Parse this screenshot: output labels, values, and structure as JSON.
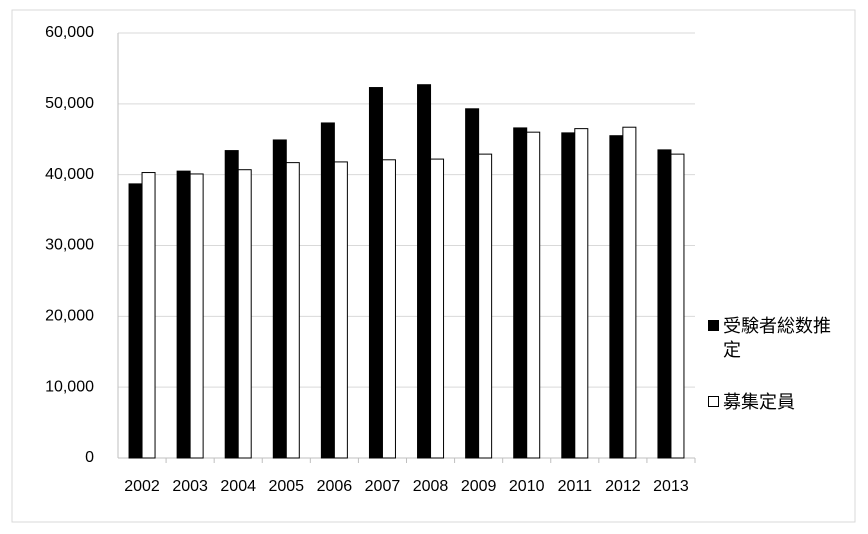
{
  "chart_data": {
    "type": "bar",
    "categories": [
      "2002",
      "2003",
      "2004",
      "2005",
      "2006",
      "2007",
      "2008",
      "2009",
      "2010",
      "2011",
      "2012",
      "2013"
    ],
    "series": [
      {
        "name": "受験者総数推定",
        "color": "#000000",
        "values": [
          38700,
          40500,
          43400,
          44900,
          47300,
          52300,
          52700,
          49300,
          46600,
          45900,
          45500,
          43500
        ]
      },
      {
        "name": "募集定員",
        "color": "#ffffff",
        "values": [
          40300,
          40100,
          40700,
          41700,
          41800,
          42100,
          42200,
          42900,
          46000,
          46500,
          46700,
          42900
        ]
      }
    ],
    "ylim": [
      0,
      60000
    ],
    "yticks": [
      0,
      {
        "value": 10000,
        "label": "10,000"
      },
      {
        "value": 20000,
        "label": "20,000"
      },
      {
        "value": 30000,
        "label": "30,000"
      },
      {
        "value": 40000,
        "label": "40,000"
      },
      {
        "value": 50000,
        "label": "50,000"
      },
      {
        "value": 60000,
        "label": "60,000"
      }
    ],
    "grid": true,
    "legend": "right"
  }
}
